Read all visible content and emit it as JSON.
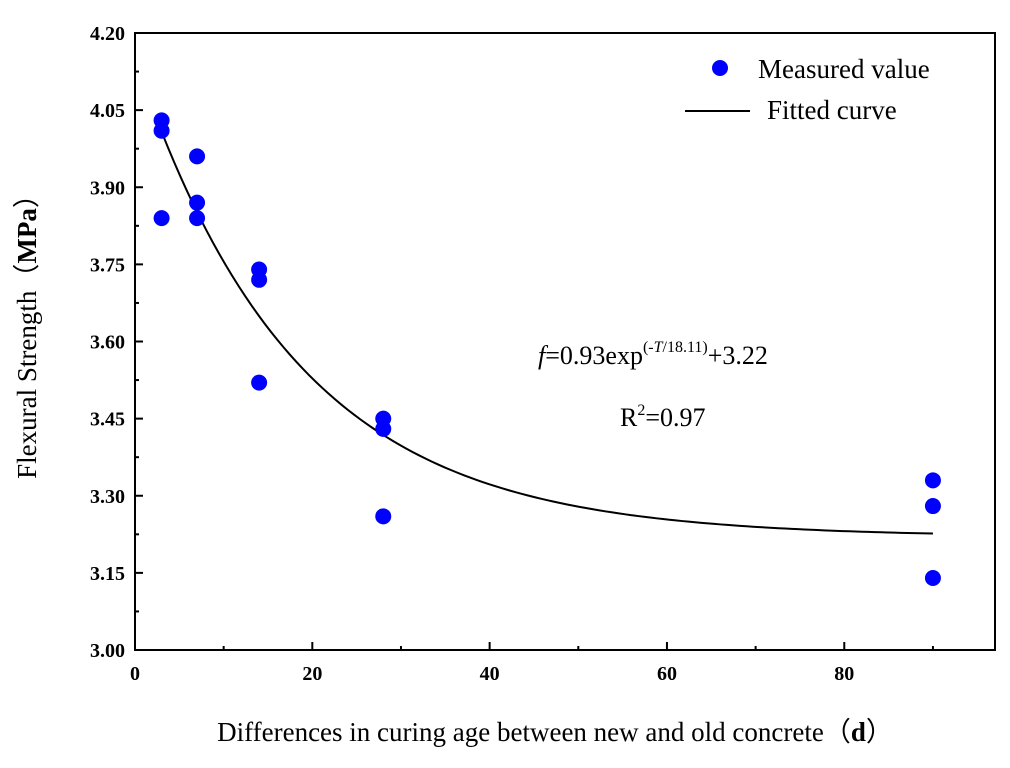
{
  "chart_data": {
    "type": "scatter",
    "title": "",
    "xlabel": "Differences in curing age between new and old concrete",
    "xlabel_unit_open": "（",
    "xlabel_unit": "d",
    "xlabel_unit_close": "）",
    "ylabel": "Flexural Strength",
    "ylabel_unit_open": "（",
    "ylabel_unit": "MPa",
    "ylabel_unit_close": "）",
    "xlim": [
      0,
      97
    ],
    "ylim": [
      3.0,
      4.2
    ],
    "x_ticks": [
      0,
      20,
      40,
      60,
      80
    ],
    "x_tick_labels": [
      "0",
      "20",
      "40",
      "60",
      "80"
    ],
    "y_ticks": [
      3.0,
      3.15,
      3.3,
      3.45,
      3.6,
      3.75,
      3.9,
      4.05,
      4.2
    ],
    "y_tick_labels": [
      "3.00",
      "3.15",
      "3.30",
      "3.45",
      "3.60",
      "3.75",
      "3.90",
      "4.05",
      "4.20"
    ],
    "grid": false,
    "legend_position": "top-right",
    "marker_color": "#0000ff",
    "line_color": "#000000",
    "series": [
      {
        "name": "Measured value",
        "kind": "scatter",
        "x": [
          3,
          3,
          3,
          7,
          7,
          7,
          14,
          14,
          14,
          28,
          28,
          28,
          90,
          90,
          90
        ],
        "y": [
          4.03,
          4.01,
          3.84,
          3.96,
          3.87,
          3.84,
          3.74,
          3.72,
          3.52,
          3.45,
          3.43,
          3.26,
          3.33,
          3.28,
          3.14
        ]
      },
      {
        "name": "Fitted curve",
        "kind": "line",
        "model": {
          "a": 0.93,
          "tau": 18.11,
          "c": 3.22
        },
        "x_range": [
          3,
          90
        ]
      }
    ],
    "annotations": {
      "equation": {
        "f": "f",
        "eq_prefix": "=0.93exp",
        "exponent": "(-T/18.11)",
        "exponent_var": "T",
        "suffix": "+3.22"
      },
      "r_squared": {
        "r": "R",
        "sup": "2",
        "value": "=0.97"
      }
    }
  }
}
